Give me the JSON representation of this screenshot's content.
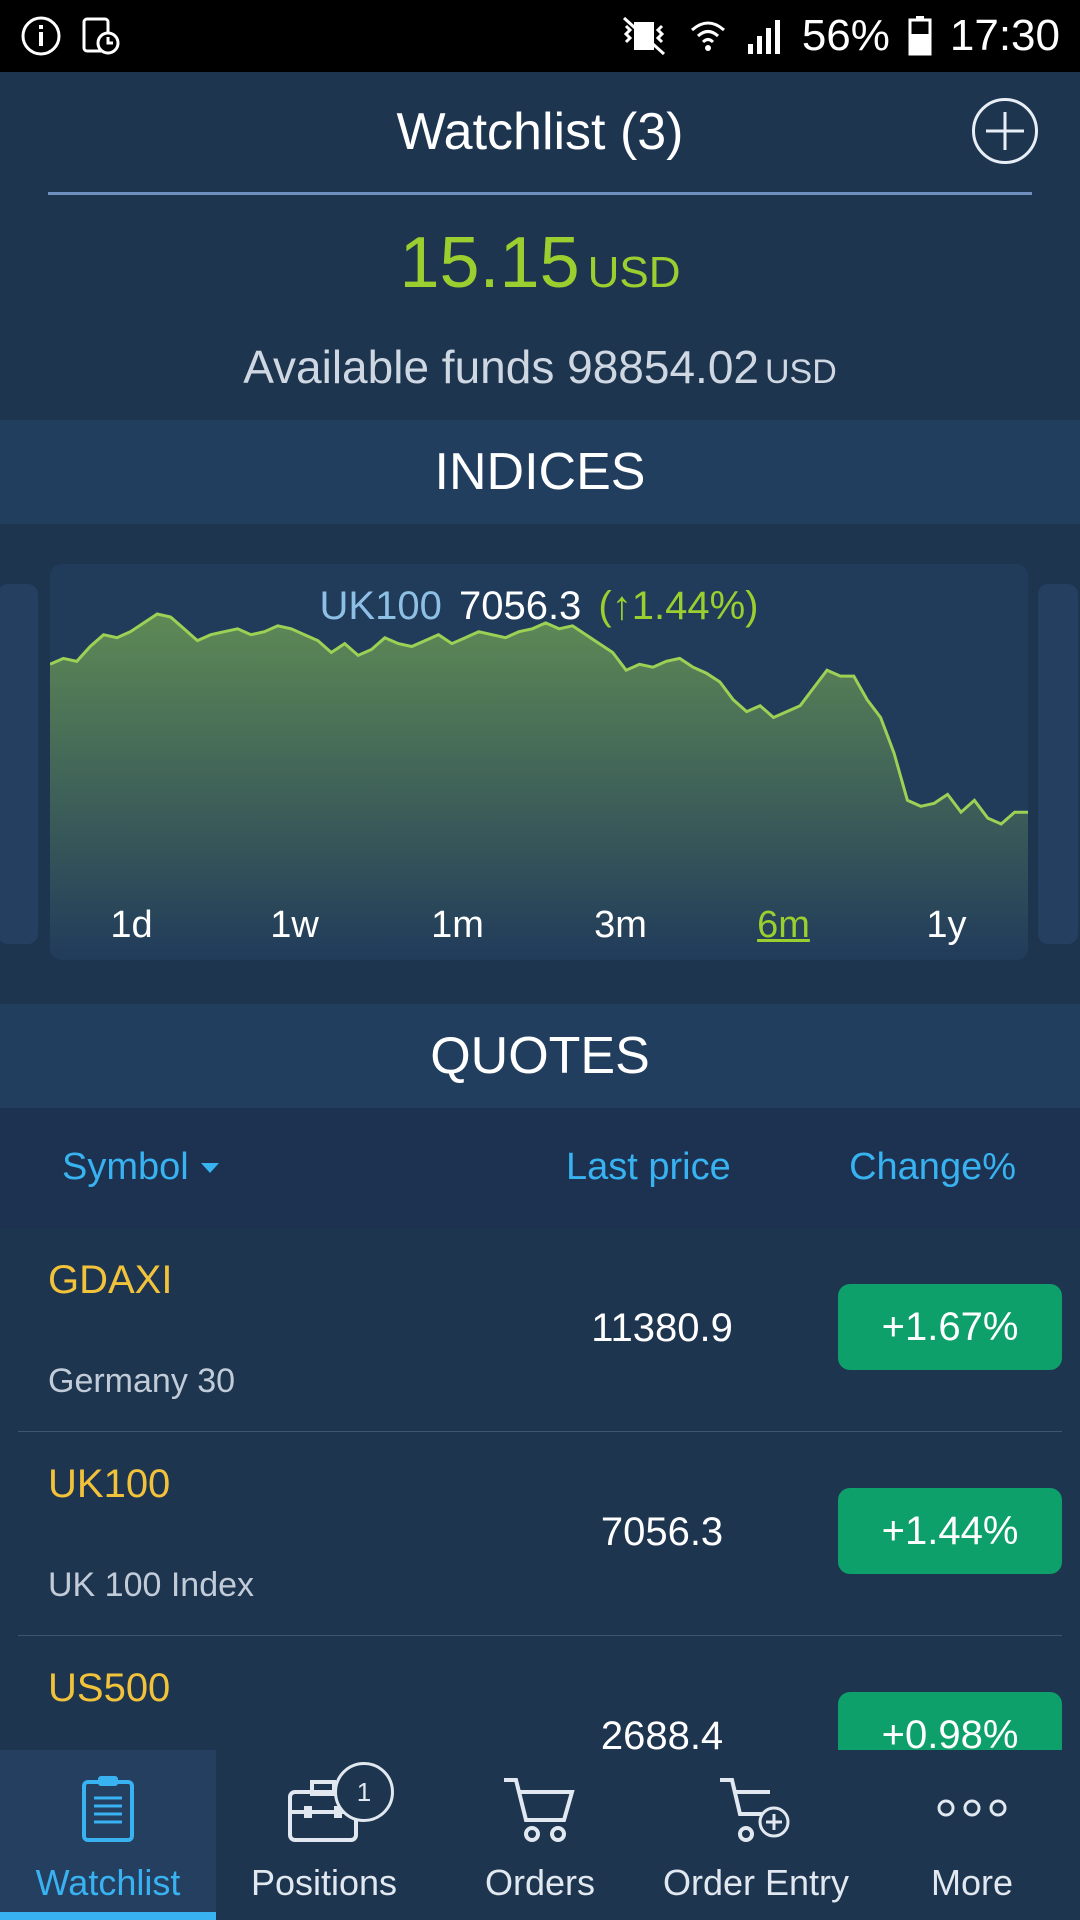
{
  "status_bar": {
    "battery": "56%",
    "time": "17:30"
  },
  "header": {
    "title": "Watchlist (3)",
    "balance_amount": "15.15",
    "balance_currency": "USD",
    "funds_label": "Available funds",
    "funds_amount": "98854.02",
    "funds_currency": "USD"
  },
  "indices": {
    "section_title": "INDICES",
    "symbol": "UK100",
    "price": "7056.3",
    "change": "(↑1.44%)",
    "ranges": [
      "1d",
      "1w",
      "1m",
      "3m",
      "6m",
      "1y"
    ],
    "active_range": "6m"
  },
  "chart_data": {
    "type": "area",
    "title": "UK100",
    "series": [
      {
        "values": [
          7410,
          7420,
          7415,
          7440,
          7460,
          7455,
          7465,
          7480,
          7495,
          7490,
          7470,
          7450,
          7460,
          7465,
          7470,
          7460,
          7465,
          7475,
          7470,
          7460,
          7450,
          7430,
          7445,
          7425,
          7435,
          7455,
          7445,
          7440,
          7450,
          7460,
          7445,
          7455,
          7465,
          7460,
          7455,
          7465,
          7470,
          7480,
          7470,
          7475,
          7460,
          7445,
          7430,
          7400,
          7410,
          7405,
          7415,
          7420,
          7405,
          7395,
          7380,
          7350,
          7330,
          7340,
          7320,
          7330,
          7340,
          7370,
          7400,
          7390,
          7390,
          7350,
          7320,
          7260,
          7180,
          7170,
          7175,
          7190,
          7160,
          7180,
          7150,
          7140,
          7160,
          7160
        ]
      }
    ],
    "colors": {
      "line": "#9bd155",
      "fill_top": "#5e8a55",
      "fill_bottom": "#213b5b"
    }
  },
  "quotes": {
    "section_title": "QUOTES",
    "col_symbol": "Symbol",
    "col_last": "Last price",
    "col_change": "Change%",
    "rows": [
      {
        "symbol": "GDAXI",
        "description": "Germany 30",
        "price": "11380.9",
        "change": "+1.67%"
      },
      {
        "symbol": "UK100",
        "description": "UK 100 Index",
        "price": "7056.3",
        "change": "+1.44%"
      },
      {
        "symbol": "US500",
        "description": "",
        "price": "2688.4",
        "change": "+0.98%"
      }
    ]
  },
  "nav": {
    "items": [
      {
        "label": "Watchlist",
        "icon": "watchlist-icon"
      },
      {
        "label": "Positions",
        "icon": "briefcase-icon",
        "badge": "1"
      },
      {
        "label": "Orders",
        "icon": "cart-icon"
      },
      {
        "label": "Order Entry",
        "icon": "cart-plus-icon"
      },
      {
        "label": "More",
        "icon": "more-dots-icon"
      }
    ]
  },
  "colors": {
    "accent": "#38b2f0",
    "positive": "#9bcf2f",
    "badge_green": "#0ea06a",
    "symbol_yellow": "#f2c23b"
  }
}
